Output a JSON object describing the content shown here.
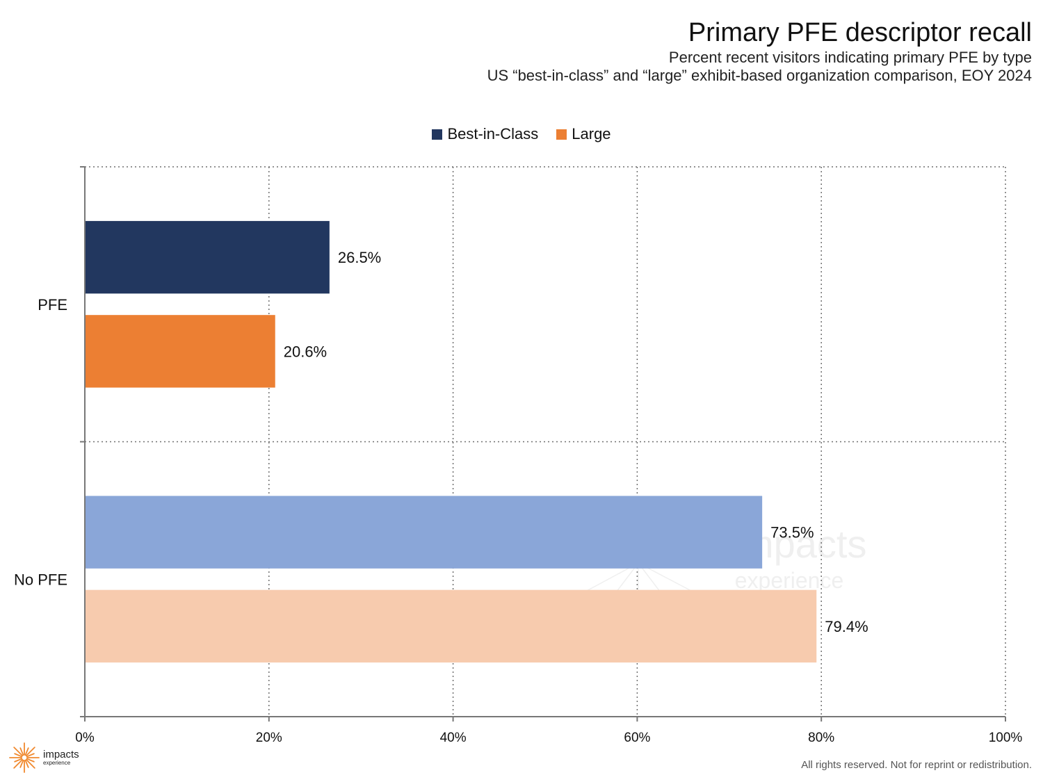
{
  "chart_data": {
    "type": "bar",
    "orientation": "horizontal",
    "title": "Primary PFE descriptor recall",
    "subtitle_lines": [
      "Percent recent visitors indicating primary PFE by type",
      "US “best-in-class” and “large” exhibit-based organization comparison, EOY 2024"
    ],
    "categories": [
      "PFE",
      "No PFE"
    ],
    "series": [
      {
        "name": "Best-in-Class",
        "values": [
          26.5,
          73.5
        ],
        "labels": [
          "26.5%",
          "73.5%"
        ]
      },
      {
        "name": "Large",
        "values": [
          20.6,
          79.4
        ],
        "labels": [
          "20.6%",
          "79.4%"
        ]
      }
    ],
    "bar_colors": [
      [
        "#22375F",
        "#EC7F33"
      ],
      [
        "#8AA6D8",
        "#F7CBAE"
      ]
    ],
    "xlim": [
      0,
      100
    ],
    "x_ticks": [
      0,
      20,
      40,
      60,
      80,
      100
    ],
    "x_tick_labels": [
      "0%",
      "20%",
      "40%",
      "60%",
      "80%",
      "100%"
    ],
    "grid": "dotted",
    "legend_position": "top-center"
  },
  "legend": {
    "items": [
      {
        "label": "Best-in-Class",
        "color": "#22375F"
      },
      {
        "label": "Large",
        "color": "#EC7F33"
      }
    ]
  },
  "logo": {
    "main": "impacts",
    "sub": "experience",
    "color": "#F0892E",
    "icon": "sunburst-icon"
  },
  "watermark": {
    "main": "impacts",
    "sub": "experience"
  },
  "footer": {
    "text": "All rights reserved. Not for reprint or redistribution."
  }
}
